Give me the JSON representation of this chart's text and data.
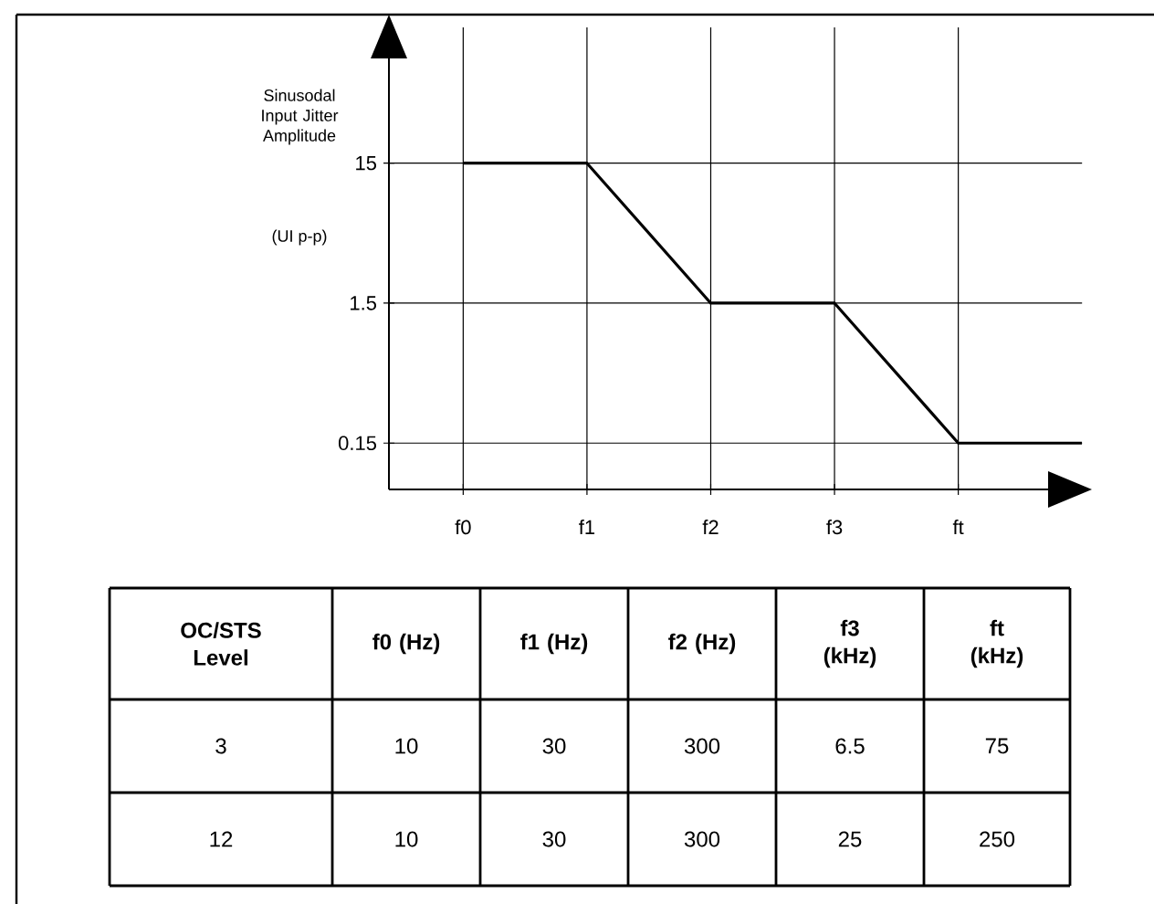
{
  "chart_data": [
    {
      "type": "line",
      "ylabel": "Sinusodal Input Jitter Amplitude",
      "annotations": [
        "(UI p-p)"
      ],
      "categories": [
        "f0",
        "f1",
        "f2",
        "f3",
        "ft",
        null
      ],
      "values": [
        15,
        15,
        1.5,
        1.5,
        0.15,
        0.15
      ],
      "color": "#000000",
      "log": "y",
      "grid": true,
      "marker": "none",
      "line_style": "solid",
      "ylim": [
        0.07,
        140
      ],
      "yticks": [
        0.15,
        1.5,
        15
      ]
    },
    {
      "type": "other",
      "categories": [
        "OC/STS Level",
        "f0 (Hz)",
        "f1 (Hz)",
        "f2 (Hz)",
        "f3 (kHz)",
        "ft (kHz)"
      ],
      "annotations": [
        "3",
        "10",
        "30",
        "300",
        "6.5",
        "75",
        "12",
        "10",
        "30",
        "300",
        "25",
        "250"
      ]
    }
  ]
}
